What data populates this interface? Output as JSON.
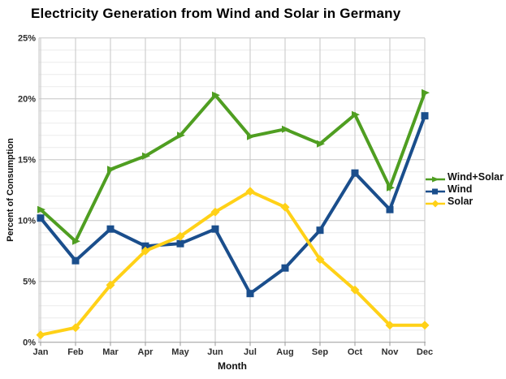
{
  "chart_data": {
    "type": "line",
    "title": "Electricity Generation from Wind and Solar in Germany",
    "xlabel": "Month",
    "ylabel": "Percent of Consumption",
    "categories": [
      "Jan",
      "Feb",
      "Mar",
      "Apr",
      "May",
      "Jun",
      "Jul",
      "Aug",
      "Sep",
      "Oct",
      "Nov",
      "Dec"
    ],
    "ylim": [
      0,
      25
    ],
    "y_major_step": 5,
    "y_minor_step": 1,
    "y_tick_labels": [
      "0%",
      "5%",
      "10%",
      "15%",
      "20%",
      "25%"
    ],
    "grid": true,
    "legend_position": "right",
    "series": [
      {
        "name": "Wind+Solar",
        "color": "#4f9e21",
        "marker": "triangle-right",
        "values": [
          10.9,
          8.3,
          14.2,
          15.3,
          17.0,
          20.3,
          16.9,
          17.5,
          16.3,
          18.7,
          12.7,
          20.5
        ]
      },
      {
        "name": "Wind",
        "color": "#1a4e8c",
        "marker": "square",
        "values": [
          10.2,
          6.7,
          9.3,
          7.9,
          8.1,
          9.3,
          4.0,
          6.1,
          9.2,
          13.9,
          10.9,
          18.6
        ]
      },
      {
        "name": "Solar",
        "color": "#ffd117",
        "marker": "diamond",
        "values": [
          0.6,
          1.2,
          4.7,
          7.5,
          8.7,
          10.7,
          12.4,
          11.1,
          6.8,
          4.3,
          1.4,
          1.4
        ]
      }
    ],
    "colors": {
      "grid_minor": "#ececec",
      "grid_major": "#c6c6c6",
      "axis": "#999999",
      "tick_text": "#2e2e2e",
      "background": "#ffffff"
    }
  }
}
